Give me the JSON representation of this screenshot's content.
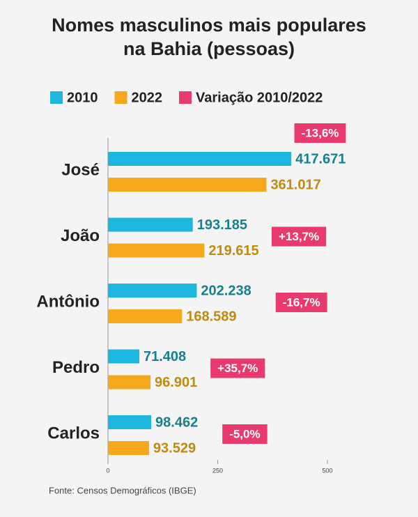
{
  "chart_data": {
    "type": "bar",
    "orientation": "horizontal",
    "title": [
      "Nomes masculinos mais populares",
      "na Bahia (pessoas)"
    ],
    "categories": [
      "José",
      "João",
      "Antônio",
      "Pedro",
      "Carlos"
    ],
    "series": [
      {
        "name": "2010",
        "color": "#1cb6df",
        "values": [
          417.671,
          193.185,
          202.238,
          71.408,
          98.462
        ]
      },
      {
        "name": "2022",
        "color": "#f5a81c",
        "values": [
          361.017,
          219.615,
          168.589,
          96.901,
          93.529
        ]
      },
      {
        "name": "Variação 2010/2022",
        "color": "#e83a6c",
        "values": [
          -13.6,
          13.7,
          -16.7,
          35.7,
          -5.0
        ],
        "value_labels": [
          "-13,6%",
          "+13,7%",
          "-16,7%",
          "+35,7%",
          "-5,0%"
        ]
      }
    ],
    "xlim": [
      0,
      500
    ],
    "xticks": [
      0,
      250,
      500
    ],
    "source": "Fonte: Censos Demográficos (IBGE)"
  }
}
